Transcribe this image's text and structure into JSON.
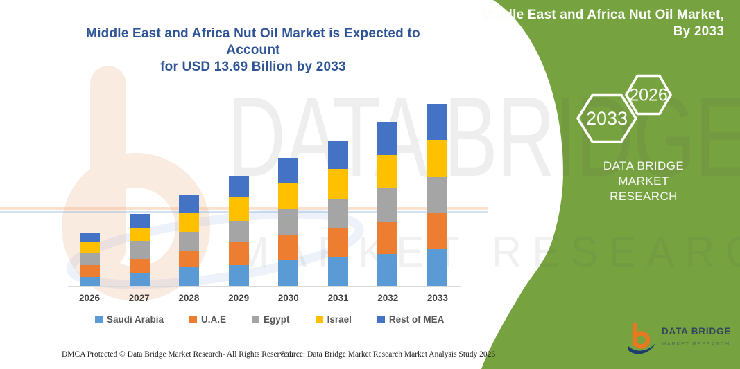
{
  "page": {
    "title_line1": "Middle East and Africa Nut Oil Market is Expected to Account",
    "title_line2": "for USD 13.69 Billion by 2033",
    "footer_left": "DMCA Protected © Data Bridge Market Research-  All Rights Reserved.",
    "footer_source": "Source: Data Bridge Market Research  Market Analysis Study 2026"
  },
  "side_panel": {
    "heading_line1": "Middle East and Africa Nut Oil Market,",
    "heading_line2": "By 2033",
    "hex_left_label": "2033",
    "hex_right_label": "2026",
    "brand_line1": "DATA BRIDGE MARKET",
    "brand_line2": "RESEARCH",
    "logo_text": "DATA BRIDGE",
    "logo_subtext": "MARKET RESEARCH"
  },
  "watermark": {
    "line1": "DATA BRIDGE",
    "line2": "MARKET RESEARCH"
  },
  "chart_data": {
    "type": "bar",
    "stacked": true,
    "title": "Middle East and Africa Nut Oil Market is Expected to Account for USD 13.69 Billion by 2033",
    "unit": "USD Billion",
    "categories": [
      "2026",
      "2027",
      "2028",
      "2029",
      "2030",
      "2031",
      "2032",
      "2033"
    ],
    "series": [
      {
        "name": "Saudi Arabia",
        "color": "#5B9BD5",
        "values": [
          0.75,
          1.01,
          1.51,
          1.59,
          1.95,
          2.22,
          2.43,
          2.78
        ]
      },
      {
        "name": "U.A.E",
        "color": "#ED7D31",
        "values": [
          0.85,
          1.08,
          1.21,
          1.79,
          1.91,
          2.15,
          2.46,
          2.77
        ]
      },
      {
        "name": "Egypt",
        "color": "#A5A5A5",
        "values": [
          0.87,
          1.35,
          1.39,
          1.56,
          1.95,
          2.21,
          2.47,
          2.72
        ]
      },
      {
        "name": "Israel",
        "color": "#FFC000",
        "values": [
          0.87,
          0.95,
          1.44,
          1.77,
          1.91,
          2.22,
          2.52,
          2.73
        ]
      },
      {
        "name": "Rest of MEA",
        "color": "#4472C4",
        "values": [
          0.71,
          1.08,
          1.33,
          1.58,
          1.91,
          2.15,
          2.47,
          2.69
        ]
      }
    ],
    "totals_estimated": [
      4.05,
      5.47,
      6.88,
      8.29,
      9.63,
      10.95,
      12.35,
      13.69
    ],
    "ylim": [
      0,
      13.69
    ],
    "gridlines": false,
    "legend_position": "bottom"
  },
  "colors": {
    "panel_green": "#76A23F",
    "title_blue": "#2F5496",
    "axis_line": "#D9D9D9",
    "axis_label": "#404040",
    "legend_text": "#595959",
    "watermark_peach": "#F8DFCC",
    "logo_orange": "#E87722",
    "logo_navy": "#1C3C6D"
  }
}
